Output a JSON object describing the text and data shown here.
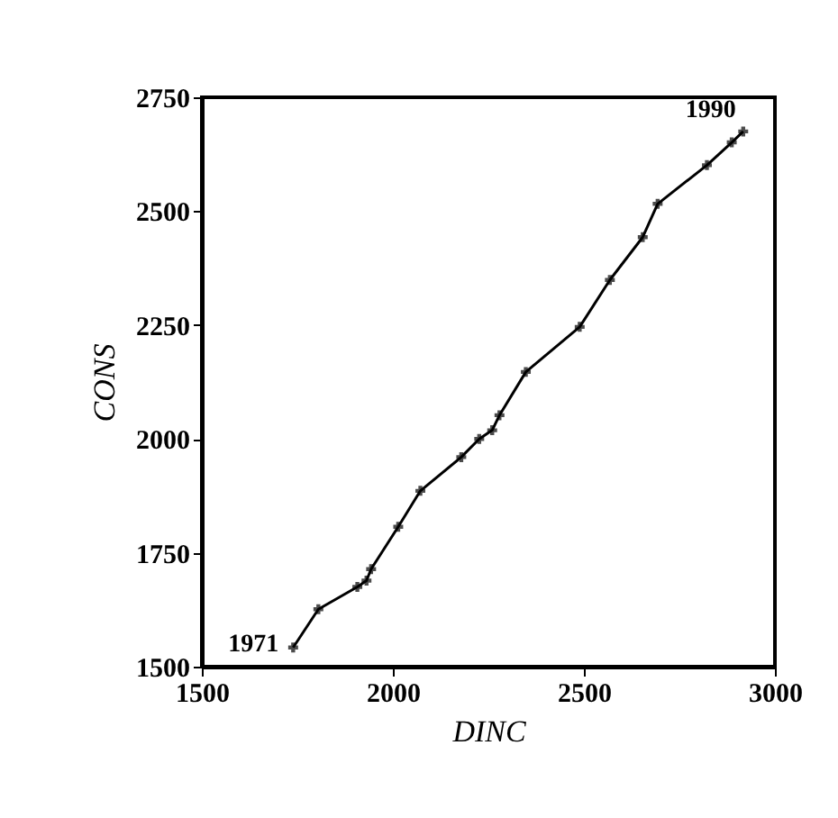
{
  "chart_data": {
    "type": "line",
    "xlabel": "DINC",
    "ylabel": "CONS",
    "x": [
      1739,
      1805,
      1907,
      1931,
      1943,
      2014,
      2072,
      2179,
      2226,
      2260,
      2279,
      2348,
      2489,
      2568,
      2654,
      2693,
      2822,
      2887,
      2917
    ],
    "values": [
      1542,
      1626,
      1675,
      1689,
      1714,
      1807,
      1886,
      1960,
      2000,
      2019,
      2052,
      2147,
      2246,
      2349,
      2443,
      2516,
      2601,
      2651,
      2675
    ],
    "color": "#000000",
    "marker": "cross",
    "line_style": "solid",
    "xlim": [
      1500,
      3000
    ],
    "xticks": [
      1500,
      2000,
      2500,
      3000
    ],
    "ylim": [
      1500,
      2750
    ],
    "yticks": [
      1500,
      1750,
      2000,
      2250,
      2500,
      2750
    ],
    "grid": false,
    "annotations": [
      {
        "text": "1971",
        "x": 1739,
        "y": 1542
      },
      {
        "text": "1990",
        "x": 2917,
        "y": 2675
      }
    ]
  }
}
